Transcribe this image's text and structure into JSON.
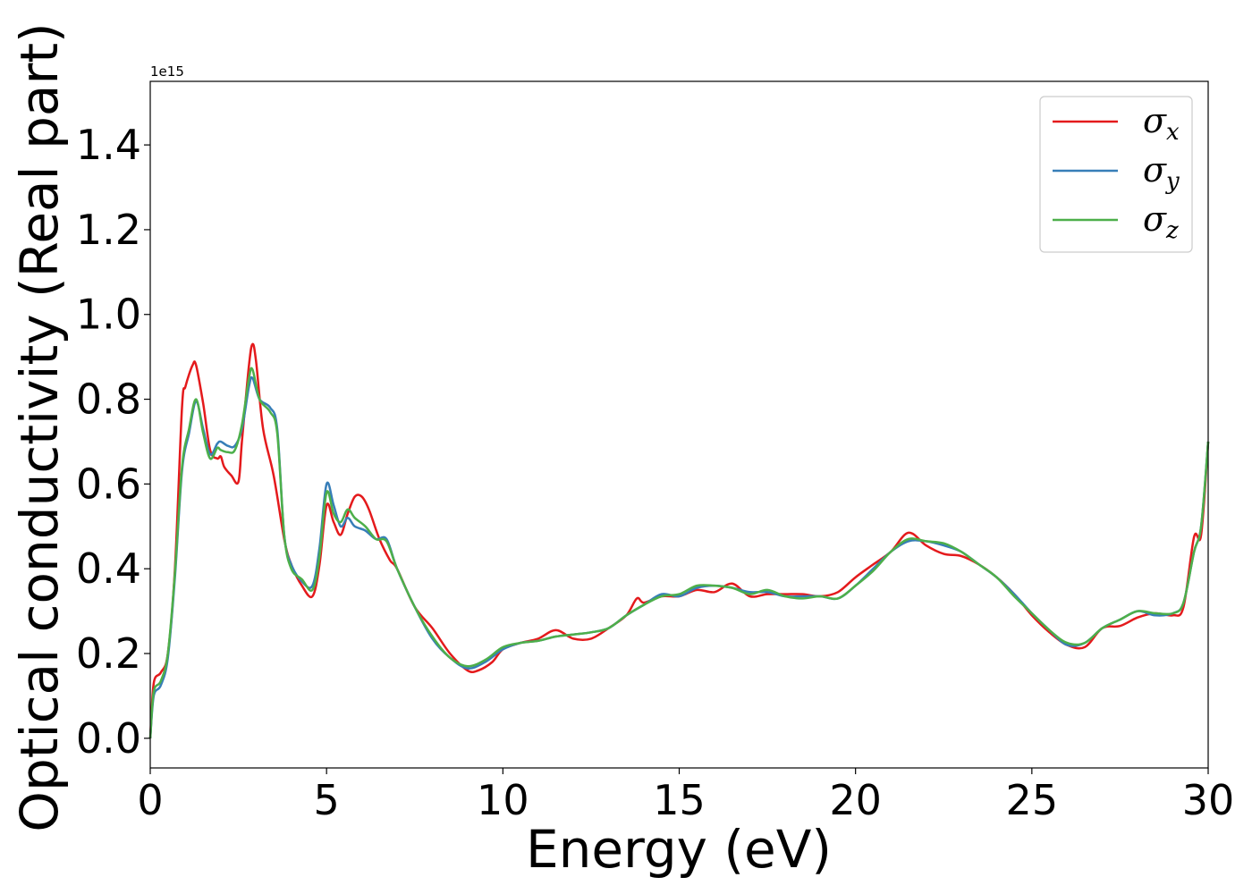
{
  "chart_data": {
    "type": "line",
    "xlabel": "Energy (eV)",
    "ylabel": "Optical conductivity (Real part)",
    "y_scale_label": "1e15",
    "y_multiplier": 1000000000000000.0,
    "xlim": [
      0,
      30
    ],
    "ylim": [
      -0.07,
      1.55
    ],
    "x_ticks": [
      0,
      5,
      10,
      15,
      20,
      25,
      30
    ],
    "x_tick_labels": [
      "0",
      "5",
      "10",
      "15",
      "20",
      "25",
      "30"
    ],
    "y_ticks": [
      0.0,
      0.2,
      0.4,
      0.6,
      0.8,
      1.0,
      1.2,
      1.4
    ],
    "y_tick_labels": [
      "0.0",
      "0.2",
      "0.4",
      "0.6",
      "0.8",
      "1.0",
      "1.2",
      "1.4"
    ],
    "grid": false,
    "legend_position": "top-right",
    "series": [
      {
        "name": "σx",
        "symbol": "σ",
        "subscript": "x",
        "color": "#e41a1c",
        "x": [
          0,
          0.1,
          0.3,
          0.5,
          0.7,
          0.9,
          1.0,
          1.2,
          1.3,
          1.5,
          1.7,
          1.9,
          2.0,
          2.1,
          2.3,
          2.5,
          2.6,
          2.8,
          2.9,
          3.0,
          3.2,
          3.5,
          3.8,
          4.0,
          4.3,
          4.6,
          4.8,
          5.0,
          5.2,
          5.4,
          5.6,
          5.8,
          6.0,
          6.2,
          6.5,
          6.8,
          7.0,
          7.5,
          8.0,
          8.5,
          9.0,
          9.3,
          9.7,
          10.0,
          10.5,
          11.0,
          11.5,
          12.0,
          12.5,
          13.0,
          13.5,
          13.8,
          14.0,
          14.5,
          15.0,
          15.5,
          16.0,
          16.5,
          17.0,
          17.5,
          18.0,
          18.5,
          19.0,
          19.5,
          20.0,
          20.5,
          21.0,
          21.5,
          22.0,
          22.5,
          23.0,
          23.5,
          24.0,
          24.5,
          25.0,
          25.5,
          26.0,
          26.5,
          27.0,
          27.5,
          28.0,
          28.5,
          29.0,
          29.3,
          29.6,
          29.8,
          30.0
        ],
        "y": [
          0.0,
          0.13,
          0.155,
          0.2,
          0.4,
          0.78,
          0.83,
          0.88,
          0.88,
          0.79,
          0.68,
          0.66,
          0.665,
          0.64,
          0.62,
          0.605,
          0.7,
          0.88,
          0.93,
          0.89,
          0.73,
          0.62,
          0.47,
          0.41,
          0.36,
          0.335,
          0.41,
          0.55,
          0.51,
          0.48,
          0.53,
          0.57,
          0.57,
          0.54,
          0.47,
          0.42,
          0.4,
          0.31,
          0.26,
          0.2,
          0.16,
          0.16,
          0.18,
          0.21,
          0.225,
          0.235,
          0.255,
          0.235,
          0.235,
          0.26,
          0.29,
          0.33,
          0.32,
          0.335,
          0.335,
          0.35,
          0.345,
          0.365,
          0.335,
          0.34,
          0.34,
          0.34,
          0.335,
          0.345,
          0.38,
          0.41,
          0.44,
          0.485,
          0.455,
          0.435,
          0.43,
          0.41,
          0.38,
          0.34,
          0.29,
          0.25,
          0.22,
          0.215,
          0.26,
          0.265,
          0.285,
          0.295,
          0.29,
          0.31,
          0.475,
          0.48,
          0.7
        ]
      },
      {
        "name": "σy",
        "symbol": "σ",
        "subscript": "y",
        "color": "#377eb8",
        "x": [
          0,
          0.1,
          0.3,
          0.5,
          0.7,
          0.9,
          1.1,
          1.3,
          1.5,
          1.7,
          1.9,
          2.0,
          2.2,
          2.4,
          2.6,
          2.8,
          2.9,
          3.1,
          3.4,
          3.6,
          3.8,
          4.0,
          4.3,
          4.6,
          4.8,
          5.0,
          5.2,
          5.4,
          5.6,
          5.8,
          6.1,
          6.4,
          6.7,
          7.0,
          7.5,
          8.0,
          8.5,
          9.0,
          9.5,
          10.0,
          10.5,
          11.0,
          11.5,
          12.0,
          12.5,
          13.0,
          13.5,
          14.0,
          14.5,
          15.0,
          15.5,
          16.0,
          16.5,
          17.0,
          17.5,
          18.0,
          18.5,
          19.0,
          19.5,
          20.0,
          20.5,
          21.0,
          21.5,
          22.0,
          22.5,
          23.0,
          23.5,
          24.0,
          24.5,
          25.0,
          25.5,
          26.0,
          26.5,
          27.0,
          27.5,
          28.0,
          28.5,
          29.0,
          29.3,
          29.6,
          29.8,
          30.0
        ],
        "y": [
          0.0,
          0.1,
          0.125,
          0.19,
          0.38,
          0.63,
          0.72,
          0.795,
          0.73,
          0.67,
          0.695,
          0.7,
          0.69,
          0.69,
          0.73,
          0.83,
          0.85,
          0.8,
          0.78,
          0.73,
          0.48,
          0.41,
          0.37,
          0.36,
          0.45,
          0.6,
          0.55,
          0.5,
          0.52,
          0.5,
          0.49,
          0.47,
          0.47,
          0.4,
          0.31,
          0.235,
          0.19,
          0.165,
          0.18,
          0.21,
          0.225,
          0.23,
          0.24,
          0.245,
          0.25,
          0.26,
          0.29,
          0.315,
          0.34,
          0.335,
          0.355,
          0.36,
          0.355,
          0.345,
          0.345,
          0.335,
          0.335,
          0.335,
          0.33,
          0.36,
          0.4,
          0.44,
          0.465,
          0.465,
          0.455,
          0.44,
          0.41,
          0.38,
          0.34,
          0.295,
          0.255,
          0.22,
          0.225,
          0.26,
          0.28,
          0.3,
          0.29,
          0.295,
          0.32,
          0.44,
          0.5,
          0.7
        ]
      },
      {
        "name": "σz",
        "symbol": "σ",
        "subscript": "z",
        "color": "#4daf4a",
        "x": [
          0,
          0.1,
          0.3,
          0.5,
          0.7,
          0.9,
          1.1,
          1.3,
          1.5,
          1.7,
          1.9,
          2.0,
          2.2,
          2.4,
          2.6,
          2.8,
          2.9,
          3.1,
          3.4,
          3.6,
          3.8,
          4.0,
          4.3,
          4.6,
          4.8,
          5.0,
          5.2,
          5.4,
          5.6,
          5.8,
          6.1,
          6.4,
          6.7,
          7.0,
          7.5,
          8.0,
          8.5,
          9.0,
          9.5,
          10.0,
          10.5,
          11.0,
          11.5,
          12.0,
          12.5,
          13.0,
          13.5,
          14.0,
          14.5,
          15.0,
          15.5,
          16.0,
          16.5,
          17.0,
          17.5,
          18.0,
          18.5,
          19.0,
          19.5,
          20.0,
          20.5,
          21.0,
          21.5,
          22.0,
          22.5,
          23.0,
          23.5,
          24.0,
          24.5,
          25.0,
          25.5,
          26.0,
          26.5,
          27.0,
          27.5,
          28.0,
          28.5,
          29.0,
          29.3,
          29.6,
          29.8,
          30.0
        ],
        "y": [
          0.0,
          0.11,
          0.135,
          0.2,
          0.39,
          0.64,
          0.73,
          0.8,
          0.72,
          0.66,
          0.685,
          0.68,
          0.675,
          0.68,
          0.74,
          0.85,
          0.87,
          0.8,
          0.77,
          0.72,
          0.48,
          0.4,
          0.375,
          0.35,
          0.43,
          0.58,
          0.53,
          0.51,
          0.54,
          0.52,
          0.5,
          0.47,
          0.465,
          0.4,
          0.31,
          0.24,
          0.19,
          0.17,
          0.185,
          0.215,
          0.225,
          0.23,
          0.24,
          0.245,
          0.25,
          0.26,
          0.29,
          0.315,
          0.335,
          0.34,
          0.36,
          0.36,
          0.355,
          0.34,
          0.35,
          0.335,
          0.33,
          0.335,
          0.33,
          0.36,
          0.395,
          0.44,
          0.47,
          0.465,
          0.46,
          0.44,
          0.41,
          0.38,
          0.335,
          0.295,
          0.255,
          0.225,
          0.225,
          0.26,
          0.28,
          0.3,
          0.295,
          0.295,
          0.32,
          0.44,
          0.5,
          0.7
        ]
      }
    ]
  }
}
